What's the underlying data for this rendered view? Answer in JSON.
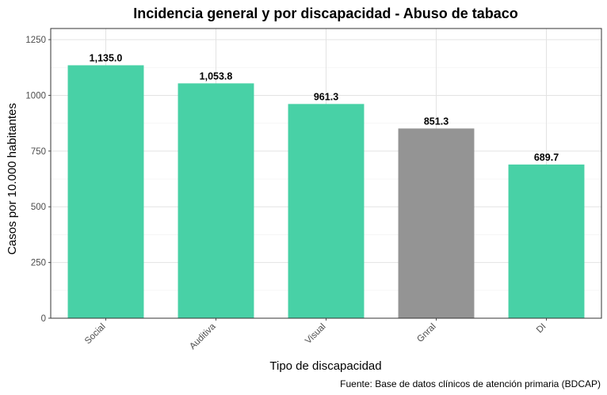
{
  "chart_data": {
    "type": "bar",
    "title": "Incidencia general y por discapacidad - Abuso de tabaco",
    "xlabel": "Tipo de discapacidad",
    "ylabel": "Casos por 10.000 habitantes",
    "caption": "Fuente: Base de datos clínicos de atención primaria (BDCAP)",
    "categories": [
      "Social",
      "Auditiva",
      "Visual",
      "Gnral",
      "DI"
    ],
    "values": [
      1135.0,
      1053.8,
      961.3,
      851.3,
      689.7
    ],
    "value_labels": [
      "1,135.0",
      "1,053.8",
      "961.3",
      "851.3",
      "689.7"
    ],
    "ylim": [
      0,
      1300
    ],
    "yticks": [
      0,
      250,
      500,
      750,
      1000,
      1250
    ],
    "ytick_labels": [
      "0",
      "250",
      "500",
      "750",
      "1000",
      "1250"
    ],
    "grid": true,
    "legend": "none",
    "colors": {
      "default": "#48d1a6",
      "highlight": "#949494",
      "highlight_category": "Gnral",
      "grid_major": "#e3e3e3",
      "grid_minor": "#f2f2f2",
      "axis": "#4d4d4d"
    }
  }
}
